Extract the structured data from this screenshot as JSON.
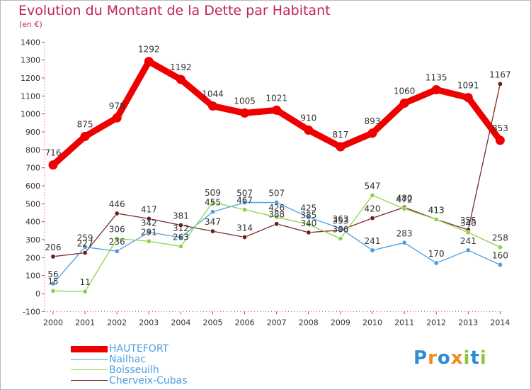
{
  "title": "Evolution du Montant de la Dette par Habitant",
  "unit": "(en €)",
  "logo": {
    "text": "Proxiti",
    "letters": [
      {
        "ch": "P",
        "color": "#2e8bd6"
      },
      {
        "ch": "r",
        "color": "#f08a1c"
      },
      {
        "ch": "o",
        "color": "#2e8bd6"
      },
      {
        "ch": "x",
        "color": "#f08a1c"
      },
      {
        "ch": "i",
        "color": "#8bc63e"
      },
      {
        "ch": "t",
        "color": "#2e8bd6"
      },
      {
        "ch": "i",
        "color": "#8bc63e"
      }
    ]
  },
  "chart_data": {
    "type": "line",
    "x": [
      "2000",
      "2001",
      "2002",
      "2003",
      "2004",
      "2005",
      "2006",
      "2007",
      "2008",
      "2009",
      "2010",
      "2011",
      "2012",
      "2013",
      "2014"
    ],
    "ylim": [
      -100,
      1400
    ],
    "yticks": [
      -100,
      0,
      100,
      200,
      300,
      400,
      500,
      600,
      700,
      800,
      900,
      1000,
      1100,
      1200,
      1300,
      1400
    ],
    "grid": false,
    "legend_position": "bottom-left",
    "series": [
      {
        "name": "HAUTEFORT",
        "color": "#ee0000",
        "values": [
          716,
          875,
          978,
          1292,
          1192,
          1044,
          1005,
          1021,
          910,
          817,
          893,
          1060,
          1135,
          1091,
          853
        ]
      },
      {
        "name": "Nailhac",
        "color": "#4c9ee0",
        "values": [
          56,
          259,
          236,
          342,
          312,
          455,
          507,
          507,
          425,
          363,
          241,
          283,
          170,
          241,
          160
        ]
      },
      {
        "name": "Boisseuilh",
        "color": "#8fd24a",
        "values": [
          15,
          11,
          306,
          291,
          263,
          509,
          467,
          426,
          385,
          306,
          547,
          472,
          413,
          340,
          258
        ]
      },
      {
        "name": "Cherveix-Cubas",
        "color": "#7a2a2a",
        "values": [
          206,
          227,
          446,
          417,
          381,
          347,
          314,
          388,
          340,
          353,
          420,
          480,
          413,
          355,
          1167
        ]
      }
    ]
  }
}
